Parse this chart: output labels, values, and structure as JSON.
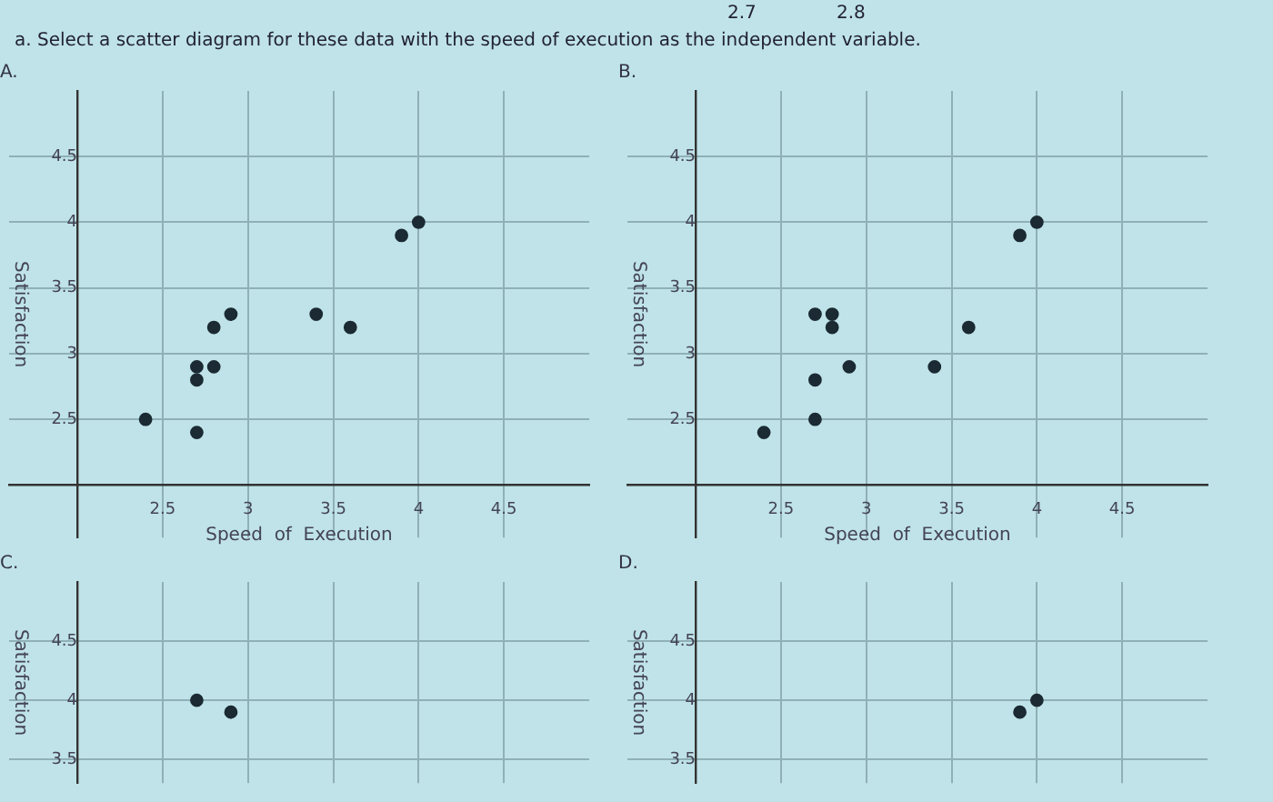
{
  "chart_data": [
    {
      "type": "scatter",
      "title": "A.",
      "annotations": [
        "2.7",
        "2.8",
        "a. Select a scatter diagram for these data with the speed of execution as the independent variable."
      ],
      "xlabel": "Speed  of  Execution",
      "ylabel": "Satisfaction",
      "xlim": [
        1.6,
        5
      ],
      "ylim": [
        1.6,
        5
      ],
      "xticks": [
        2.5,
        3,
        3.5,
        4,
        4.5
      ],
      "yticks": [
        2.5,
        3,
        3.5,
        4,
        4.5
      ],
      "grid": true,
      "legend": false,
      "marker": "circle",
      "series": [
        {
          "color": "#1b2a33",
          "x": [
            2.4,
            2.7,
            2.7,
            2.7,
            2.8,
            2.8,
            2.9,
            3.4,
            3.6,
            3.9,
            4.0
          ],
          "values": [
            2.5,
            2.4,
            2.8,
            2.9,
            2.9,
            3.2,
            3.3,
            3.3,
            3.2,
            3.9,
            4.0
          ]
        }
      ]
    },
    {
      "type": "scatter",
      "title": "B.",
      "xlabel": "Speed  of  Execution",
      "ylabel": "Satisfaction",
      "xlim": [
        1.6,
        5
      ],
      "ylim": [
        1.6,
        5
      ],
      "xticks": [
        2.5,
        3,
        3.5,
        4,
        4.5
      ],
      "yticks": [
        2.5,
        3,
        3.5,
        4,
        4.5
      ],
      "grid": true,
      "legend": false,
      "marker": "circle",
      "series": [
        {
          "color": "#1b2a33",
          "x": [
            2.4,
            2.7,
            2.7,
            2.7,
            2.8,
            2.8,
            2.9,
            3.4,
            3.6,
            3.9,
            4.0
          ],
          "values": [
            2.4,
            2.5,
            2.8,
            3.3,
            3.3,
            3.2,
            2.9,
            2.9,
            3.2,
            3.9,
            4.0
          ]
        }
      ]
    },
    {
      "type": "scatter",
      "title": "C.",
      "ylabel": "Satisfaction",
      "xlim": [
        1.6,
        5
      ],
      "ylim": [
        3.3,
        5
      ],
      "xticks": [
        2.5,
        3,
        3.5,
        4,
        4.5
      ],
      "yticks": [
        3.5,
        4,
        4.5
      ],
      "grid": true,
      "legend": false,
      "marker": "circle",
      "tick_labels": "y",
      "series": [
        {
          "color": "#1b2a33",
          "x": [
            2.7,
            2.9
          ],
          "values": [
            4.0,
            3.9
          ]
        }
      ]
    },
    {
      "type": "scatter",
      "title": "D.",
      "ylabel": "Satisfaction",
      "xlim": [
        1.6,
        5
      ],
      "ylim": [
        3.3,
        5
      ],
      "xticks": [
        2.5,
        3,
        3.5,
        4,
        4.5
      ],
      "yticks": [
        3.5,
        4,
        4.5
      ],
      "grid": true,
      "legend": false,
      "marker": "circle",
      "tick_labels": "y",
      "series": [
        {
          "color": "#1b2a33",
          "x": [
            3.9,
            4.0
          ],
          "values": [
            3.9,
            4.0
          ]
        }
      ]
    }
  ]
}
